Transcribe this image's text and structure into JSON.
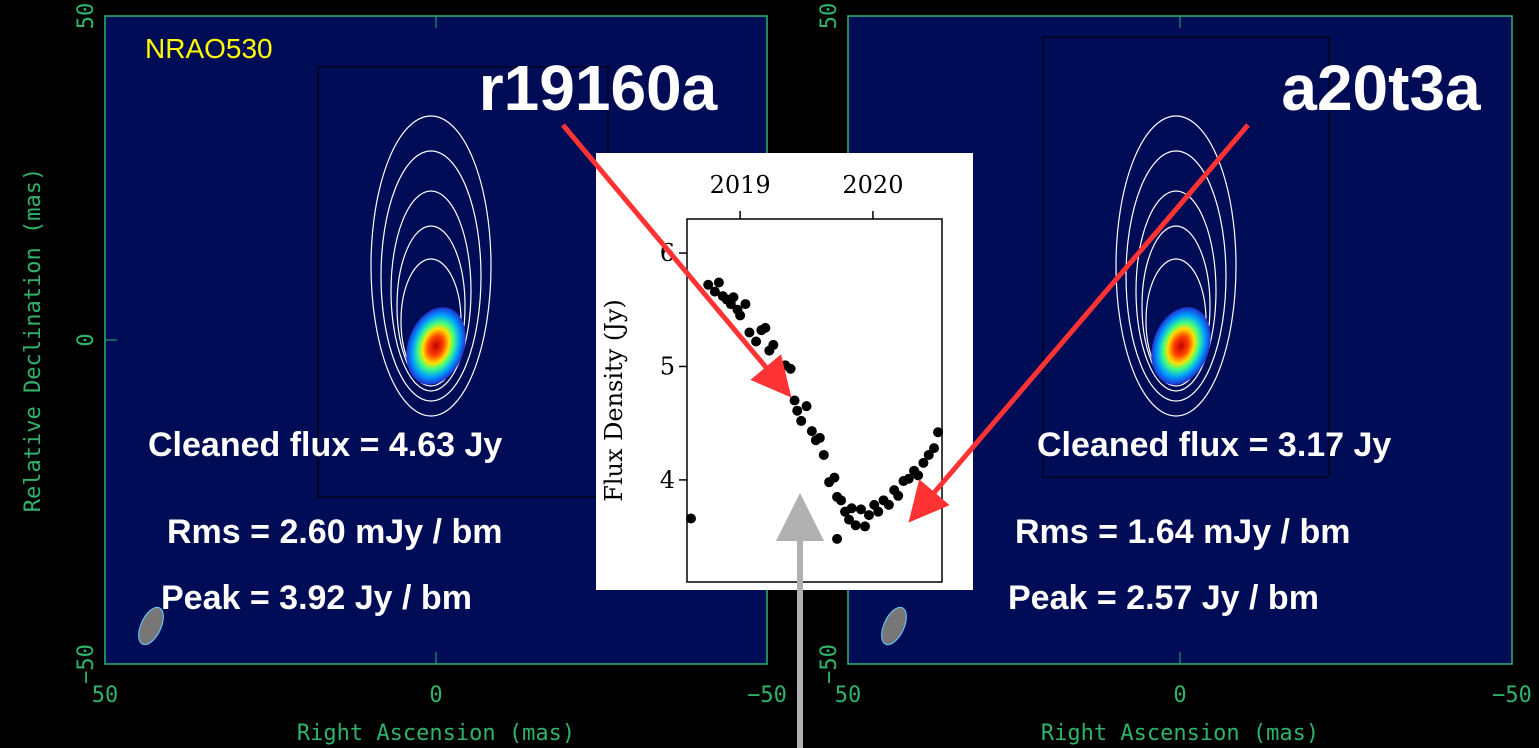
{
  "chart_data": [
    {
      "type": "map",
      "source": "NRAO530",
      "title": "r19160a",
      "annotations": [
        "Cleaned flux = 4.63 Jy",
        "Rms = 2.60 mJy / bm",
        "Peak = 3.92 Jy / bm"
      ],
      "x_label": "Right Ascension  (mas)",
      "y_label": "Relative Declination  (mas)",
      "xlim": [
        50,
        -50
      ],
      "ylim": [
        -50,
        50
      ],
      "xticks": [
        50,
        0,
        {
          "value": -50,
          "label": "−50"
        }
      ],
      "yticks": [
        {
          "value": -50,
          "label": "−50"
        },
        0,
        50
      ]
    },
    {
      "type": "map",
      "title": "a20t3a",
      "annotations": [
        "Cleaned flux = 3.17 Jy",
        "Rms = 1.64 mJy / bm",
        "Peak = 2.57 Jy / bm"
      ],
      "x_label": "Right Ascension  (mas)",
      "xlim": [
        50,
        -50
      ],
      "ylim": [
        -50,
        50
      ],
      "xticks": [
        50,
        0,
        {
          "value": -50,
          "label": "−50"
        }
      ],
      "yticks": [
        {
          "value": -50,
          "label": "−50"
        },
        50
      ]
    },
    {
      "type": "scatter",
      "y_label": "Flux Density (Jy)",
      "xlim": [
        2018.6,
        2020.52
      ],
      "ylim": [
        3.1,
        6.3
      ],
      "xticks": [
        2019,
        2020
      ],
      "yticks": [
        4,
        5,
        6
      ],
      "color": "#000000",
      "x": [
        2018.63,
        2018.76,
        2018.81,
        2018.84,
        2018.87,
        2018.9,
        2018.93,
        2018.95,
        2018.98,
        2019.0,
        2019.04,
        2019.07,
        2019.12,
        2019.16,
        2019.19,
        2019.22,
        2019.25,
        2019.3,
        2019.34,
        2019.38,
        2019.41,
        2019.43,
        2019.46,
        2019.5,
        2019.54,
        2019.57,
        2019.6,
        2019.63,
        2019.67,
        2019.71,
        2019.73,
        2019.73,
        2019.76,
        2019.79,
        2019.82,
        2019.84,
        2019.87,
        2019.91,
        2019.94,
        2019.97,
        2020.01,
        2020.04,
        2020.08,
        2020.12,
        2020.16,
        2020.19,
        2020.23,
        2020.27,
        2020.31,
        2020.34,
        2020.38,
        2020.42,
        2020.46,
        2020.49
      ],
      "values": [
        3.66,
        5.72,
        5.66,
        5.74,
        5.62,
        5.59,
        5.55,
        5.61,
        5.5,
        5.45,
        5.55,
        5.3,
        5.22,
        5.32,
        5.34,
        5.14,
        5.19,
        4.95,
        5.01,
        4.98,
        4.7,
        4.61,
        4.52,
        4.65,
        4.43,
        4.35,
        4.37,
        4.22,
        3.98,
        4.02,
        3.85,
        3.48,
        3.82,
        3.72,
        3.65,
        3.75,
        3.6,
        3.74,
        3.59,
        3.69,
        3.78,
        3.72,
        3.82,
        3.78,
        3.91,
        3.86,
        3.99,
        4.01,
        4.08,
        4.04,
        4.15,
        4.22,
        4.28,
        4.42
      ]
    }
  ]
}
